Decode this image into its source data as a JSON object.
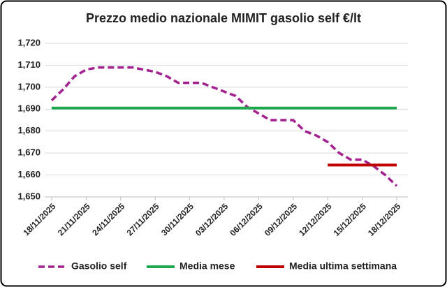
{
  "chart_data": {
    "type": "line",
    "title": "Prezzo medio nazionale MIMIT gasolio self €/lt",
    "categories": [
      "18/11/2025",
      null,
      null,
      "21/11/2025",
      null,
      null,
      "24/11/2025",
      null,
      null,
      "27/11/2025",
      null,
      null,
      "30/11/2025",
      null,
      null,
      "03/12/2025",
      null,
      null,
      "06/12/2025",
      null,
      null,
      "09/12/2025",
      null,
      null,
      "12/12/2025",
      null,
      null,
      "15/12/2025",
      null,
      null,
      "18/12/2025"
    ],
    "series": [
      {
        "name": "Gasolio self",
        "color": "#a3218e",
        "dashed": true,
        "values": [
          1.694,
          1.699,
          1.705,
          1.708,
          1.709,
          1.709,
          1.709,
          1.709,
          1.708,
          1.707,
          1.705,
          1.702,
          1.702,
          1.702,
          1.7,
          1.698,
          1.696,
          1.691,
          1.688,
          1.685,
          1.685,
          1.685,
          1.68,
          1.678,
          1.675,
          1.67,
          1.667,
          1.667,
          1.664,
          1.66,
          1.655
        ]
      },
      {
        "name": "Media mese",
        "color": "#1fa84f",
        "dashed": false,
        "values": [
          1.6905,
          1.6905,
          1.6905,
          1.6905,
          1.6905,
          1.6905,
          1.6905,
          1.6905,
          1.6905,
          1.6905,
          1.6905,
          1.6905,
          1.6905,
          1.6905,
          1.6905,
          1.6905,
          1.6905,
          1.6905,
          1.6905,
          1.6905,
          1.6905,
          1.6905,
          1.6905,
          1.6905,
          1.6905,
          1.6905,
          1.6905,
          1.6905,
          1.6905,
          1.6905,
          1.6905
        ]
      },
      {
        "name": "Media ultima settimana",
        "color": "#c00000",
        "dashed": false,
        "values": [
          null,
          null,
          null,
          null,
          null,
          null,
          null,
          null,
          null,
          null,
          null,
          null,
          null,
          null,
          null,
          null,
          null,
          null,
          null,
          null,
          null,
          null,
          null,
          null,
          1.6645,
          1.6645,
          1.6645,
          1.6645,
          1.6645,
          1.6645,
          1.6645
        ]
      }
    ],
    "ylim": [
      1.65,
      1.72
    ],
    "yticks": [
      {
        "value": 1.65,
        "label": "1,650"
      },
      {
        "value": 1.66,
        "label": "1,660"
      },
      {
        "value": 1.67,
        "label": "1,670"
      },
      {
        "value": 1.68,
        "label": "1,680"
      },
      {
        "value": 1.69,
        "label": "1,690"
      },
      {
        "value": 1.7,
        "label": "1,700"
      },
      {
        "value": 1.71,
        "label": "1,710"
      },
      {
        "value": 1.72,
        "label": "1,720"
      }
    ],
    "grid": true,
    "legend": "bottom"
  }
}
